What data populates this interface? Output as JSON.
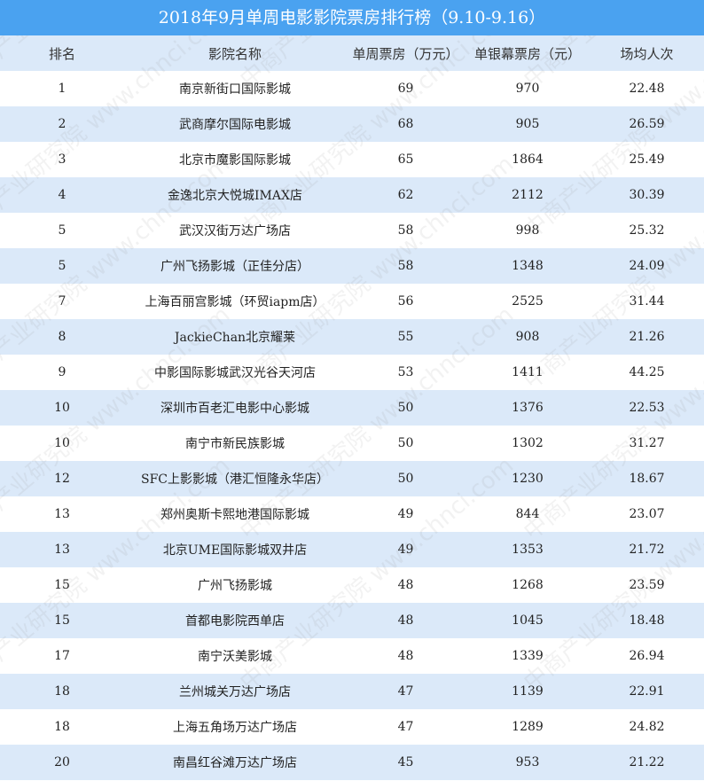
{
  "title": "2018年9月单周电影影院票房排行榜（9.10-9.16）",
  "columns": [
    "排名",
    "影院名称",
    "单周票房（万元）",
    "单银幕票房（元）",
    "场均人次"
  ],
  "rows": [
    [
      "1",
      "南京新街口国际影城",
      "69",
      "970",
      "22.48"
    ],
    [
      "2",
      "武商摩尔国际电影城",
      "68",
      "905",
      "26.59"
    ],
    [
      "3",
      "北京市魔影国际影城",
      "65",
      "1864",
      "25.49"
    ],
    [
      "4",
      "金逸北京大悦城IMAX店",
      "62",
      "2112",
      "30.39"
    ],
    [
      "5",
      "武汉汉街万达广场店",
      "58",
      "998",
      "25.32"
    ],
    [
      "5",
      "广州飞扬影城（正佳分店）",
      "58",
      "1348",
      "24.09"
    ],
    [
      "7",
      "上海百丽宫影城（环贸iapm店）",
      "56",
      "2525",
      "31.44"
    ],
    [
      "8",
      "JackieChan北京耀莱",
      "55",
      "908",
      "21.26"
    ],
    [
      "9",
      "中影国际影城武汉光谷天河店",
      "53",
      "1411",
      "44.25"
    ],
    [
      "10",
      "深圳市百老汇电影中心影城",
      "50",
      "1376",
      "22.53"
    ],
    [
      "10",
      "南宁市新民族影城",
      "50",
      "1302",
      "31.27"
    ],
    [
      "12",
      "SFC上影影城（港汇恒隆永华店）",
      "50",
      "1230",
      "18.67"
    ],
    [
      "13",
      "郑州奥斯卡熙地港国际影城",
      "49",
      "844",
      "23.07"
    ],
    [
      "13",
      "北京UME国际影城双井店",
      "49",
      "1353",
      "21.72"
    ],
    [
      "15",
      "广州飞扬影城",
      "48",
      "1268",
      "23.59"
    ],
    [
      "15",
      "首都电影院西单店",
      "48",
      "1045",
      "18.48"
    ],
    [
      "17",
      "南宁沃美影城",
      "48",
      "1339",
      "26.94"
    ],
    [
      "18",
      "兰州城关万达广场店",
      "47",
      "1139",
      "22.91"
    ],
    [
      "18",
      "上海五角场万达广场店",
      "47",
      "1289",
      "24.82"
    ],
    [
      "20",
      "南昌红谷滩万达广场店",
      "45",
      "953",
      "21.22"
    ]
  ],
  "watermark": "中商产业研究院 www.chnci.com",
  "colors": {
    "title_bg": "#4aa2f0",
    "stripe": "#dbe9f9"
  }
}
